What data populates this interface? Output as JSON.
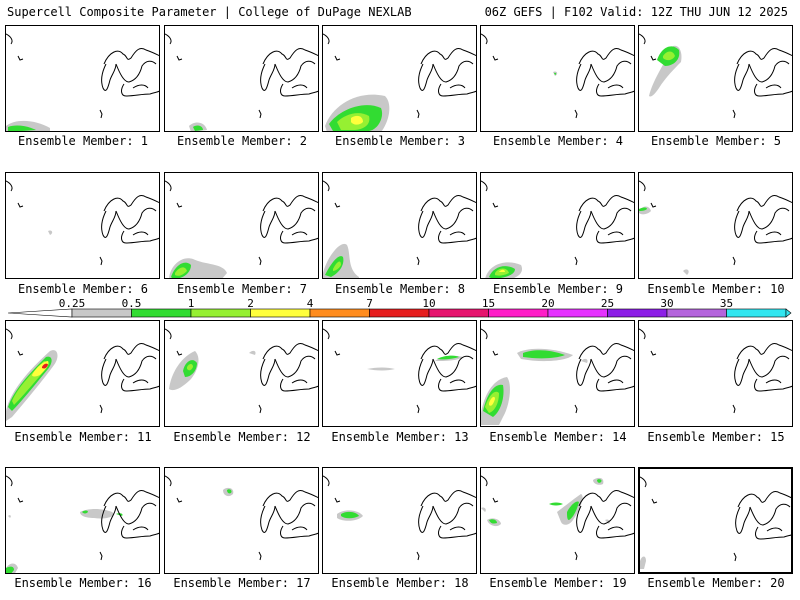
{
  "header": {
    "title_left": "Supercell Composite Parameter | College of DuPage NEXLAB",
    "title_right": "06Z GEFS | F102 Valid: 12Z THU JUN 12 2025"
  },
  "panels": [
    {
      "label": "Ensemble Member: 1"
    },
    {
      "label": "Ensemble Member: 2"
    },
    {
      "label": "Ensemble Member: 3"
    },
    {
      "label": "Ensemble Member: 4"
    },
    {
      "label": "Ensemble Member: 5"
    },
    {
      "label": "Ensemble Member: 6"
    },
    {
      "label": "Ensemble Member: 7"
    },
    {
      "label": "Ensemble Member: 8"
    },
    {
      "label": "Ensemble Member: 9"
    },
    {
      "label": "Ensemble Member: 10"
    },
    {
      "label": "Ensemble Member: 11"
    },
    {
      "label": "Ensemble Member: 12"
    },
    {
      "label": "Ensemble Member: 13"
    },
    {
      "label": "Ensemble Member: 14"
    },
    {
      "label": "Ensemble Member: 15"
    },
    {
      "label": "Ensemble Member: 16"
    },
    {
      "label": "Ensemble Member: 17"
    },
    {
      "label": "Ensemble Member: 18"
    },
    {
      "label": "Ensemble Member: 19"
    },
    {
      "label": "Ensemble Member: 20"
    }
  ],
  "colorbar": {
    "labels": [
      "0.25",
      "0.5",
      "1",
      "2",
      "4",
      "7",
      "10",
      "15",
      "20",
      "25",
      "30",
      "35"
    ],
    "colors": [
      "#c8c8c8",
      "#32dc32",
      "#96f032",
      "#ffff3c",
      "#ff8c1e",
      "#e61e1e",
      "#e6146e",
      "#ff1ec8",
      "#e632ff",
      "#8c1ee6",
      "#b464dc",
      "#32e6f0"
    ]
  },
  "colors": {
    "light_gray": "#c8c8c8",
    "green": "#32dc32",
    "light_green": "#96f032",
    "yellow": "#ffff3c",
    "red": "#e61e1e"
  }
}
